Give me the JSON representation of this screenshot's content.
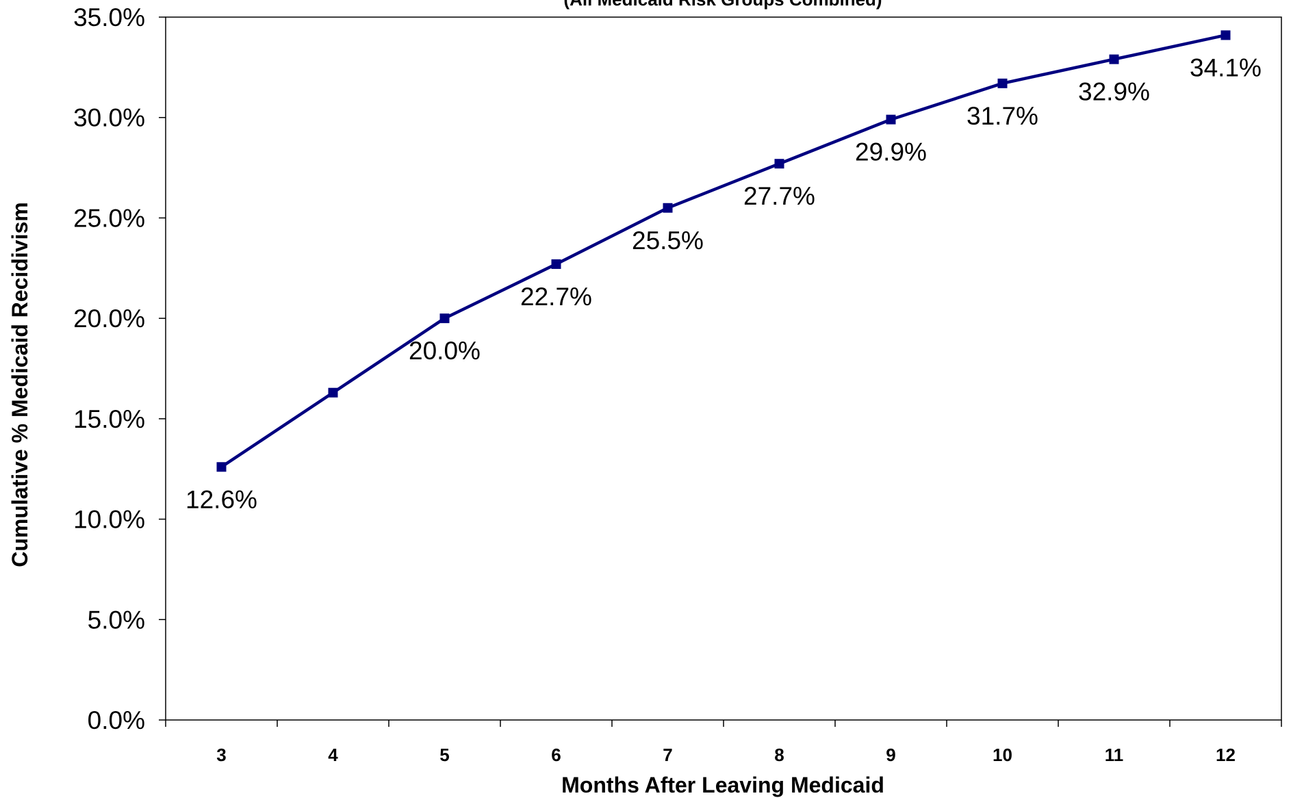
{
  "chart_data": {
    "type": "line",
    "subtitle": "(All Medicaid Risk Groups Combined)",
    "xlabel": "Months After Leaving Medicaid",
    "ylabel": "Cumulative % Medicaid Recidivism",
    "categories": [
      "3",
      "4",
      "5",
      "6",
      "7",
      "8",
      "9",
      "10",
      "11",
      "12"
    ],
    "series": [
      {
        "values": [
          12.6,
          16.3,
          20.0,
          22.7,
          25.5,
          27.7,
          29.9,
          31.7,
          32.9,
          34.1
        ]
      }
    ],
    "data_labels": {
      "0": "12.6%",
      "2": "20.0%",
      "3": "22.7%",
      "4": "25.5%",
      "5": "27.7%",
      "6": "29.9%",
      "7": "31.7%",
      "8": "32.9%",
      "9": "34.1%"
    },
    "ylim": [
      0,
      35
    ],
    "yticks": [
      "0.0%",
      "5.0%",
      "10.0%",
      "15.0%",
      "20.0%",
      "25.0%",
      "30.0%",
      "35.0%"
    ],
    "grid": false,
    "legend": "none",
    "colors": {
      "line": "#000080",
      "marker": "#000080",
      "axis": "#000000"
    }
  }
}
